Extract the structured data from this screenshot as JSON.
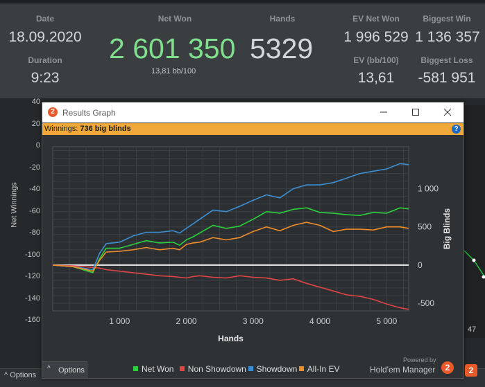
{
  "stats": {
    "date_label": "Date",
    "date_value": "18.09.2020",
    "duration_label": "Duration",
    "duration_value": "9:23",
    "netwon_label": "Net Won",
    "netwon_value": "2 601 350",
    "netwon_sub": "13,81 bb/100",
    "hands_label": "Hands",
    "hands_value": "5329",
    "evnet_label": "EV Net Won",
    "evnet_value": "1 996 529",
    "evbb_label": "EV (bb/100)",
    "evbb_value": "13,61",
    "bigwin_label": "Biggest Win",
    "bigwin_value": "1 136 357",
    "bigloss_label": "Biggest Loss",
    "bigloss_value": "-581 951"
  },
  "background_chart": {
    "ylabel": "Net Winnings",
    "yticks": [
      "40",
      "20",
      "0",
      "-20",
      "-40",
      "-60",
      "-80",
      "-100",
      "-120",
      "-140",
      "-160"
    ],
    "right_tick": "47",
    "line_color": "#22c23a"
  },
  "bottom": {
    "options_label": "Options"
  },
  "window": {
    "title": "Results Graph",
    "logo_glyph": "2",
    "winning_label": "Winnings:",
    "winning_value": "736 big blinds",
    "help_glyph": "?",
    "options_label": "Options",
    "powered_by": "Powered by",
    "brand": "Hold'em Manager",
    "brand_logo": "2"
  },
  "chart_data": {
    "type": "line",
    "xlabel": "Hands",
    "ylabel": "Big Blinds",
    "xlim": [
      0,
      5329
    ],
    "ylim": [
      -600,
      1550
    ],
    "x_ticks": [
      1000,
      2000,
      3000,
      4000,
      5000
    ],
    "x_tick_labels": [
      "1 000",
      "2 000",
      "3 000",
      "4 000",
      "5 000"
    ],
    "y_ticks": [
      1000,
      500,
      0,
      -500
    ],
    "y_tick_labels": [
      "1 000",
      "500",
      "0",
      "-500"
    ],
    "grid": true,
    "legend_position": "bottom",
    "x": [
      0,
      300,
      600,
      700,
      800,
      1000,
      1200,
      1400,
      1600,
      1800,
      1900,
      2000,
      2100,
      2200,
      2400,
      2600,
      2800,
      3000,
      3200,
      3400,
      3600,
      3800,
      4000,
      4200,
      4400,
      4600,
      4800,
      5000,
      5200,
      5329
    ],
    "series": [
      {
        "name": "Net Won",
        "color": "#2ad13a",
        "values": [
          0,
          -20,
          -100,
          80,
          220,
          220,
          270,
          320,
          290,
          300,
          260,
          330,
          370,
          420,
          520,
          480,
          510,
          600,
          700,
          680,
          730,
          750,
          690,
          680,
          660,
          650,
          690,
          680,
          750,
          736
        ]
      },
      {
        "name": "Non Showdown",
        "color": "#e04545",
        "values": [
          0,
          -10,
          -30,
          -40,
          -60,
          -80,
          -100,
          -120,
          -140,
          -150,
          -160,
          -170,
          -150,
          -140,
          -160,
          -170,
          -140,
          -160,
          -170,
          -200,
          -180,
          -240,
          -290,
          -340,
          -390,
          -410,
          -450,
          -510,
          -560,
          -580
        ]
      },
      {
        "name": "Showdown",
        "color": "#3c8fd4",
        "values": [
          0,
          -20,
          -60,
          150,
          280,
          300,
          380,
          430,
          430,
          450,
          420,
          480,
          540,
          600,
          720,
          700,
          770,
          850,
          920,
          880,
          1000,
          1050,
          1050,
          1080,
          1140,
          1200,
          1230,
          1260,
          1330,
          1316
        ]
      },
      {
        "name": "All-In EV",
        "color": "#f08c2a",
        "values": [
          0,
          -20,
          -80,
          60,
          170,
          180,
          200,
          230,
          200,
          220,
          200,
          270,
          290,
          300,
          360,
          330,
          360,
          440,
          500,
          450,
          520,
          560,
          520,
          440,
          470,
          470,
          460,
          500,
          500,
          480
        ]
      }
    ]
  }
}
